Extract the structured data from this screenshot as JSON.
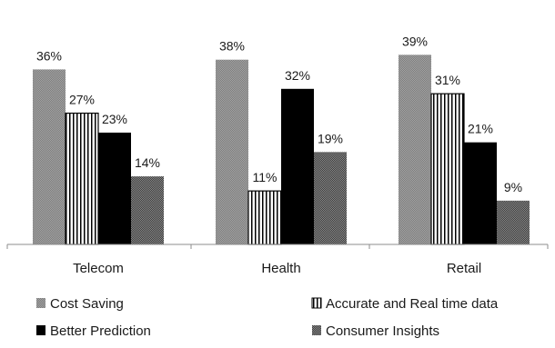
{
  "chart_data": {
    "type": "bar",
    "categories": [
      "Telecom",
      "Health",
      "Retail"
    ],
    "series": [
      {
        "name": "Cost Saving",
        "values": [
          36,
          38,
          39
        ],
        "labels": [
          "36%",
          "38%",
          "39%"
        ],
        "pattern": "dots-light"
      },
      {
        "name": "Accurate and Real time data",
        "values": [
          27,
          11,
          31
        ],
        "labels": [
          "27%",
          "11%",
          "31%"
        ],
        "pattern": "vertical-stripes"
      },
      {
        "name": "Better Prediction",
        "values": [
          23,
          32,
          21
        ],
        "labels": [
          "23%",
          "32%",
          "21%"
        ],
        "pattern": "solid-black"
      },
      {
        "name": "Consumer Insights",
        "values": [
          14,
          19,
          9
        ],
        "labels": [
          "14%",
          "19%",
          "9%"
        ],
        "pattern": "dots-dark"
      }
    ],
    "title": "",
    "xlabel": "",
    "ylabel": "",
    "ylim": [
      0,
      40
    ],
    "grid": false,
    "legend": "bottom"
  }
}
